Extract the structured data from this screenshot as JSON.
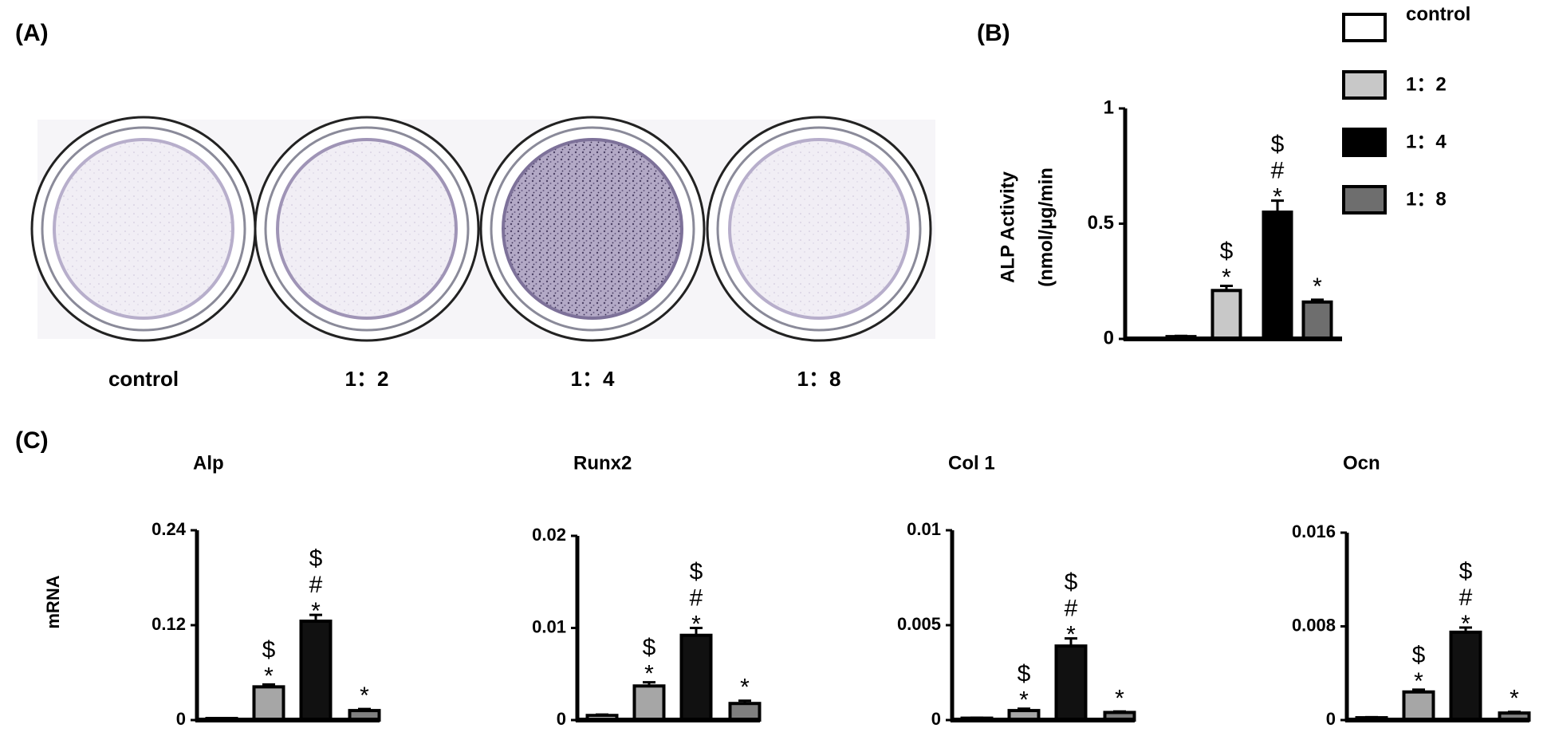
{
  "panels": {
    "a": "(A)",
    "b": "(B)",
    "c": "(C)"
  },
  "wells": {
    "labels": [
      "control",
      "1：2",
      "1：4",
      "1：8"
    ]
  },
  "chart_data": [
    {
      "type": "bar",
      "ylabel": [
        "ALP Activity",
        "(nmol/µg/min"
      ],
      "categories": [
        "control",
        "1：2",
        "1：4",
        "1：8"
      ],
      "colors": [
        "#ffffff",
        "#c8c8c8",
        "#000000",
        "#6e6e6e"
      ],
      "values": [
        0.01,
        0.21,
        0.55,
        0.16
      ],
      "errors": [
        0.003,
        0.02,
        0.05,
        0.01
      ],
      "annotations": [
        null,
        "$*",
        "$#*",
        "*"
      ],
      "ylim": [
        0,
        1
      ],
      "yticks": [
        0,
        0.5,
        1
      ],
      "legend": "right"
    },
    {
      "type": "bar",
      "title": "Alp",
      "ylabel": [
        "mRNA"
      ],
      "colors": [
        "#ffffff",
        "#a6a6a6",
        "#111111",
        "#7f7f7f"
      ],
      "values": [
        0.002,
        0.042,
        0.125,
        0.012
      ],
      "errors": [
        0.0005,
        0.003,
        0.008,
        0.002
      ],
      "annotations": [
        null,
        "$*",
        "$#*",
        "*"
      ],
      "ylim": [
        0,
        0.24
      ],
      "yticks": [
        0,
        0.12,
        0.24
      ]
    },
    {
      "type": "bar",
      "title": "Runx2",
      "colors": [
        "#ffffff",
        "#a6a6a6",
        "#111111",
        "#7f7f7f"
      ],
      "values": [
        0.0005,
        0.0037,
        0.0092,
        0.0018
      ],
      "errors": [
        0.0001,
        0.0004,
        0.0008,
        0.0003
      ],
      "annotations": [
        null,
        "$*",
        "$#*",
        "*"
      ],
      "ylim": [
        0,
        0.02
      ],
      "yticks": [
        0,
        0.01,
        0.02
      ]
    },
    {
      "type": "bar",
      "title": "Col 1",
      "colors": [
        "#ffffff",
        "#a6a6a6",
        "#111111",
        "#7f7f7f"
      ],
      "values": [
        0.0001,
        0.0005,
        0.0039,
        0.0004
      ],
      "errors": [
        2e-05,
        0.0001,
        0.0004,
        5e-05
      ],
      "annotations": [
        null,
        "$*",
        "$#*",
        "*"
      ],
      "ylim": [
        0,
        0.01
      ],
      "yticks": [
        0,
        0.005,
        0.01
      ]
    },
    {
      "type": "bar",
      "title": "Ocn",
      "colors": [
        "#ffffff",
        "#a6a6a6",
        "#111111",
        "#7f7f7f"
      ],
      "values": [
        0.0002,
        0.0024,
        0.0075,
        0.0006
      ],
      "errors": [
        5e-05,
        0.0002,
        0.0004,
        0.0001
      ],
      "annotations": [
        null,
        "$*",
        "$#*",
        "*"
      ],
      "ylim": [
        0,
        0.016
      ],
      "yticks": [
        0,
        0.008,
        0.016
      ]
    }
  ]
}
